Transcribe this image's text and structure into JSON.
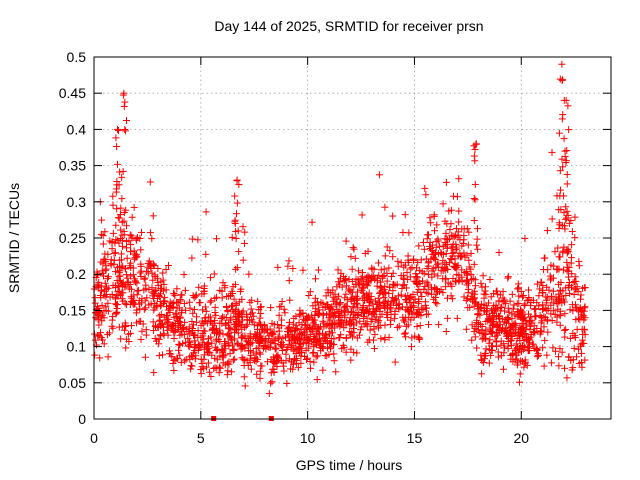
{
  "chart_data": {
    "type": "scatter",
    "title": "Day 144 of 2025, SRMTID for receiver prsn",
    "xlabel": "GPS time / hours",
    "ylabel": "SRMTID / TECUs",
    "xlim": [
      0,
      24.2
    ],
    "ylim": [
      0,
      0.5
    ],
    "xticks": [
      0,
      5,
      10,
      15,
      20
    ],
    "xtick_labels": [
      "0",
      "5",
      "10",
      "15",
      "20"
    ],
    "yticks": [
      0,
      0.05,
      0.1,
      0.15,
      0.2,
      0.25,
      0.3,
      0.35,
      0.4,
      0.45,
      0.5
    ],
    "ytick_labels": [
      "0",
      "0.05",
      "0.1",
      "0.15",
      "0.2",
      "0.25",
      "0.3",
      "0.35",
      "0.4",
      "0.45",
      "0.5"
    ],
    "grid": true,
    "marker": "plus",
    "color": "#ff0000",
    "zero_markers": [
      5.6,
      8.3
    ],
    "profile": {
      "x": [
        0,
        0.5,
        1,
        1.5,
        2,
        2.5,
        3,
        3.5,
        4,
        4.5,
        5,
        5.5,
        6,
        6.5,
        7,
        7.5,
        8,
        8.5,
        9,
        9.5,
        10,
        10.5,
        11,
        11.5,
        12,
        12.5,
        13,
        13.5,
        14,
        14.5,
        15,
        15.5,
        16,
        16.5,
        17,
        17.5,
        18,
        18.5,
        19,
        19.5,
        20,
        20.5,
        21,
        21.5,
        22,
        22.5,
        23
      ],
      "median": [
        0.15,
        0.18,
        0.2,
        0.2,
        0.19,
        0.18,
        0.16,
        0.14,
        0.13,
        0.12,
        0.12,
        0.12,
        0.12,
        0.13,
        0.12,
        0.11,
        0.1,
        0.1,
        0.1,
        0.11,
        0.12,
        0.12,
        0.13,
        0.14,
        0.15,
        0.16,
        0.17,
        0.17,
        0.17,
        0.17,
        0.17,
        0.19,
        0.21,
        0.22,
        0.22,
        0.2,
        0.14,
        0.13,
        0.13,
        0.12,
        0.12,
        0.13,
        0.15,
        0.17,
        0.2,
        0.16,
        0.12
      ],
      "spread": [
        0.04,
        0.06,
        0.07,
        0.06,
        0.05,
        0.05,
        0.05,
        0.04,
        0.04,
        0.04,
        0.04,
        0.04,
        0.04,
        0.04,
        0.04,
        0.035,
        0.03,
        0.03,
        0.03,
        0.03,
        0.03,
        0.035,
        0.04,
        0.04,
        0.04,
        0.04,
        0.04,
        0.04,
        0.04,
        0.04,
        0.045,
        0.05,
        0.05,
        0.05,
        0.05,
        0.05,
        0.04,
        0.035,
        0.035,
        0.035,
        0.035,
        0.04,
        0.05,
        0.07,
        0.1,
        0.07,
        0.05
      ]
    },
    "peaks": [
      {
        "x": 1.1,
        "y": 0.4
      },
      {
        "x": 1.4,
        "y": 0.45
      },
      {
        "x": 6.7,
        "y": 0.33
      },
      {
        "x": 17.9,
        "y": 0.38
      },
      {
        "x": 21.9,
        "y": 0.49
      },
      {
        "x": 22.1,
        "y": 0.44
      }
    ]
  }
}
